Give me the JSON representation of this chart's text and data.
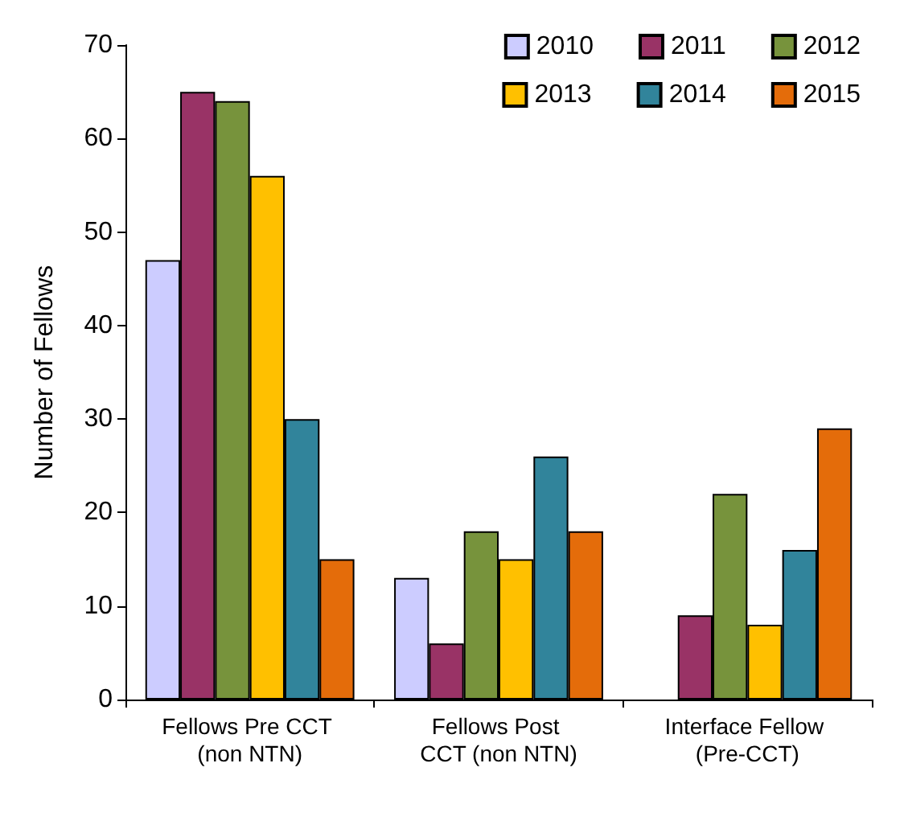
{
  "chart_data": {
    "type": "bar",
    "ylabel": "Number of Fellows",
    "categories": [
      "Fellows Pre CCT (non NTN)",
      "Fellows Post CCT (non NTN)",
      "Interface Fellow (Pre-CCT)"
    ],
    "series": [
      {
        "name": "2010",
        "color": "#ccccff",
        "values": [
          47,
          13,
          null
        ]
      },
      {
        "name": "2011",
        "color": "#993366",
        "values": [
          65,
          6,
          9
        ]
      },
      {
        "name": "2012",
        "color": "#77933c",
        "values": [
          64,
          18,
          22
        ]
      },
      {
        "name": "2013",
        "color": "#ffc000",
        "values": [
          56,
          15,
          8
        ]
      },
      {
        "name": "2014",
        "color": "#31849b",
        "values": [
          30,
          26,
          16
        ]
      },
      {
        "name": "2015",
        "color": "#e46c0a",
        "values": [
          15,
          18,
          29
        ]
      }
    ],
    "ylim": [
      0,
      70
    ],
    "yticks": [
      0,
      10,
      20,
      30,
      40,
      50,
      60,
      70
    ],
    "grid": false,
    "legend": "top right"
  }
}
